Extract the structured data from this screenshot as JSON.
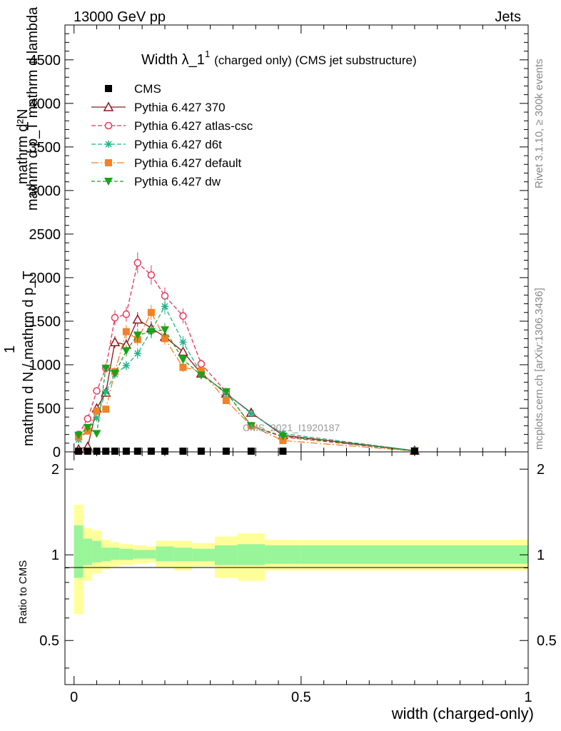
{
  "header": {
    "left": "13000 GeV pp",
    "right": "Jets"
  },
  "side_labels": {
    "rivet": "Rivet 3.1.10, ≥ 300k events",
    "mcplots": "mcplots.cern.ch [arXiv:1306.3436]"
  },
  "watermark": "CMS_2021_I1920187",
  "chart_data": {
    "type": "line",
    "title": "Width λ_1^1 (charged only) (CMS jet substructure)",
    "title_main": "Width λ_1",
    "title_sup": "1",
    "title_rest": "(charged only) (CMS jet substructure)",
    "xlabel": "width (charged-only)",
    "ylabel_top": "mathrm d",
    "ylabel_text": "1/(mathrm d N / mathrm d p_T) · mathrm d^2 N/(mathrm d p_T mathrm d lambda)",
    "ylabel_lines": [
      "mathrm d²N",
      "mathrm d p_T mathrm d lambda",
      "1",
      "mathrm d N / mathrm d p_T"
    ],
    "ratio_ylabel": "Ratio to CMS",
    "xlim": [
      -0.02,
      1.0
    ],
    "ylim": [
      0,
      4900
    ],
    "ratio_ylim": [
      0.35,
      2.3
    ],
    "x_ticks": [
      "0",
      "0.5",
      "1"
    ],
    "y_ticks": [
      "0",
      "500",
      "1000",
      "1500",
      "2000",
      "2500",
      "3000",
      "3500",
      "4000",
      "4500"
    ],
    "ratio_ticks": [
      "0.5",
      "1",
      "2"
    ],
    "x": [
      0.01,
      0.03,
      0.05,
      0.07,
      0.09,
      0.115,
      0.14,
      0.17,
      0.2,
      0.24,
      0.28,
      0.335,
      0.39,
      0.46,
      0.75
    ],
    "bin_edges": [
      0.0,
      0.02,
      0.04,
      0.06,
      0.08,
      0.1,
      0.13,
      0.16,
      0.18,
      0.22,
      0.26,
      0.31,
      0.36,
      0.42,
      0.5,
      1.0
    ],
    "series": [
      {
        "name": "CMS",
        "color": "#000000",
        "marker": "square",
        "dash": "none",
        "values": [
          0,
          0,
          0,
          0,
          0,
          0,
          0,
          0,
          0,
          0,
          0,
          0,
          0,
          0,
          0
        ]
      },
      {
        "name": "Pythia 6.427 370",
        "color": "#8b1a1a",
        "marker": "triangle-up-open",
        "dash": "none",
        "values": [
          30,
          60,
          500,
          680,
          1260,
          1230,
          1520,
          1420,
          1320,
          1150,
          900,
          670,
          450,
          190,
          15
        ]
      },
      {
        "name": "Pythia 6.427 atlas-csc",
        "color": "#e8365a",
        "marker": "circle-open",
        "dash": "6,3",
        "values": [
          200,
          380,
          700,
          960,
          1540,
          1580,
          2170,
          2030,
          1790,
          1560,
          1010,
          690,
          300,
          170,
          10
        ]
      },
      {
        "name": "Pythia 6.427 d6t",
        "color": "#1fb58a",
        "marker": "asterisk",
        "dash": "6,3",
        "values": [
          140,
          240,
          390,
          690,
          890,
          990,
          1130,
          1390,
          1670,
          1260,
          900,
          670,
          440,
          210,
          15
        ]
      },
      {
        "name": "Pythia 6.427 default",
        "color": "#f0822a",
        "marker": "square-filled",
        "dash": "10,3,2,3",
        "values": [
          170,
          240,
          470,
          490,
          920,
          1380,
          1290,
          1600,
          1300,
          970,
          930,
          590,
          300,
          130,
          10
        ]
      },
      {
        "name": "Pythia 6.427 dw",
        "color": "#1aa31a",
        "marker": "triangle-down-filled",
        "dash": "5,3",
        "values": [
          190,
          280,
          210,
          960,
          900,
          1160,
          1340,
          1380,
          1400,
          1060,
          880,
          690,
          300,
          180,
          10
        ]
      }
    ],
    "ratio_band_yellow": [
      [
        0.62,
        1.5
      ],
      [
        0.81,
        1.24
      ],
      [
        0.86,
        1.22
      ],
      [
        0.89,
        1.13
      ],
      [
        0.91,
        1.11
      ],
      [
        0.92,
        1.09
      ],
      [
        0.93,
        1.08
      ],
      [
        0.94,
        1.07
      ],
      [
        0.9,
        1.12
      ],
      [
        0.88,
        1.12
      ],
      [
        0.91,
        1.1
      ],
      [
        0.83,
        1.16
      ],
      [
        0.81,
        1.19
      ],
      [
        0.88,
        1.13
      ],
      [
        0.88,
        1.13
      ]
    ],
    "ratio_band_green": [
      [
        0.83,
        1.27
      ],
      [
        0.92,
        1.14
      ],
      [
        0.94,
        1.12
      ],
      [
        0.95,
        1.06
      ],
      [
        0.96,
        1.06
      ],
      [
        0.96,
        1.05
      ],
      [
        0.97,
        1.04
      ],
      [
        0.97,
        1.04
      ],
      [
        0.95,
        1.07
      ],
      [
        0.95,
        1.06
      ],
      [
        0.95,
        1.05
      ],
      [
        0.92,
        1.08
      ],
      [
        0.92,
        1.09
      ],
      [
        0.93,
        1.08
      ],
      [
        0.93,
        1.08
      ]
    ]
  }
}
